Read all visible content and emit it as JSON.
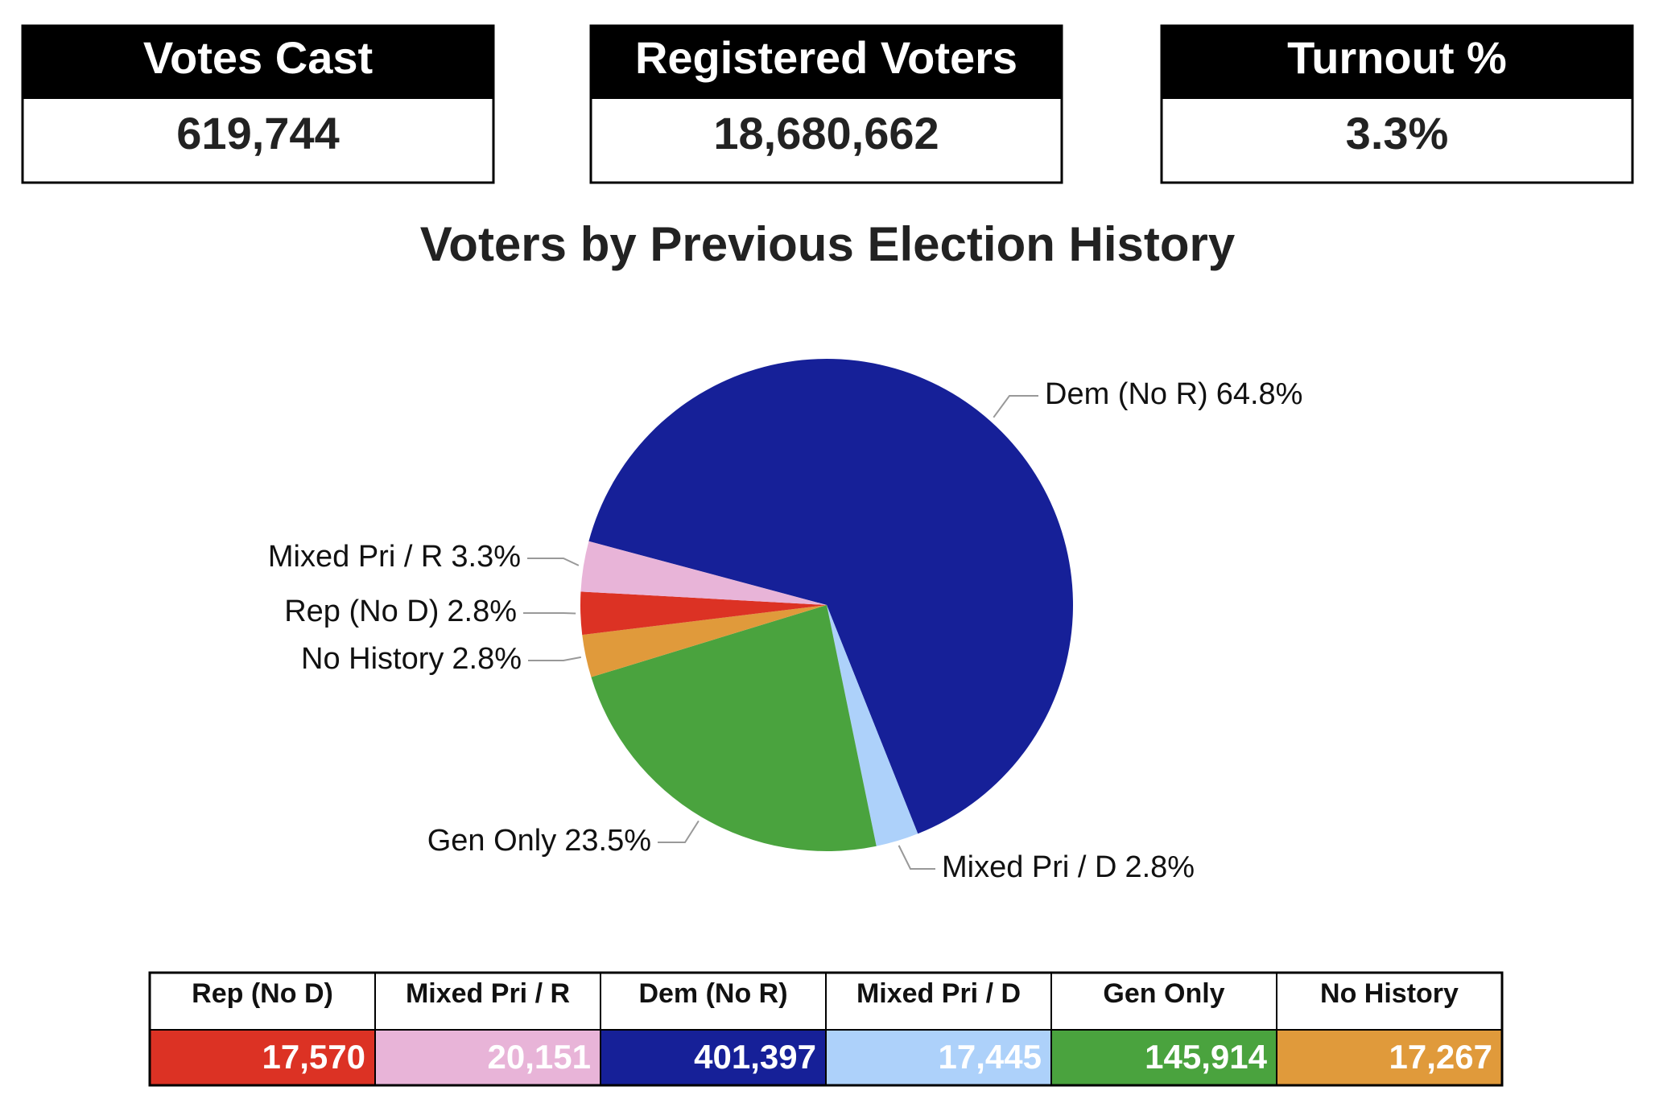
{
  "stats": [
    {
      "label": "Votes Cast",
      "value": "619,744"
    },
    {
      "label": "Registered Voters",
      "value": "18,680,662"
    },
    {
      "label": "Turnout %",
      "value": "3.3%"
    }
  ],
  "chart_data": {
    "type": "pie",
    "title": "Voters by Previous Election History",
    "categories": [
      "Dem (No R)",
      "Mixed Pri / D",
      "Gen Only",
      "No History",
      "Rep (No D)",
      "Mixed Pri / R"
    ],
    "values": [
      64.8,
      2.8,
      23.5,
      2.8,
      2.8,
      3.3
    ],
    "value_labels": [
      "64.8%",
      "2.8%",
      "23.5%",
      "2.8%",
      "2.8%",
      "3.3%"
    ],
    "colors": [
      "#162098",
      "#add1fa",
      "#4aa33e",
      "#e09a3b",
      "#dc3224",
      "#e8b4d8"
    ]
  },
  "table": {
    "headers": [
      "Rep (No D)",
      "Mixed Pri / R",
      "Dem (No R)",
      "Mixed Pri / D",
      "Gen Only",
      "No History"
    ],
    "values": [
      "17,570",
      "20,151",
      "401,397",
      "17,445",
      "145,914",
      "17,267"
    ],
    "colors": [
      "#dc3224",
      "#e8b4d8",
      "#162098",
      "#add1fa",
      "#4aa33e",
      "#e09a3b"
    ]
  }
}
